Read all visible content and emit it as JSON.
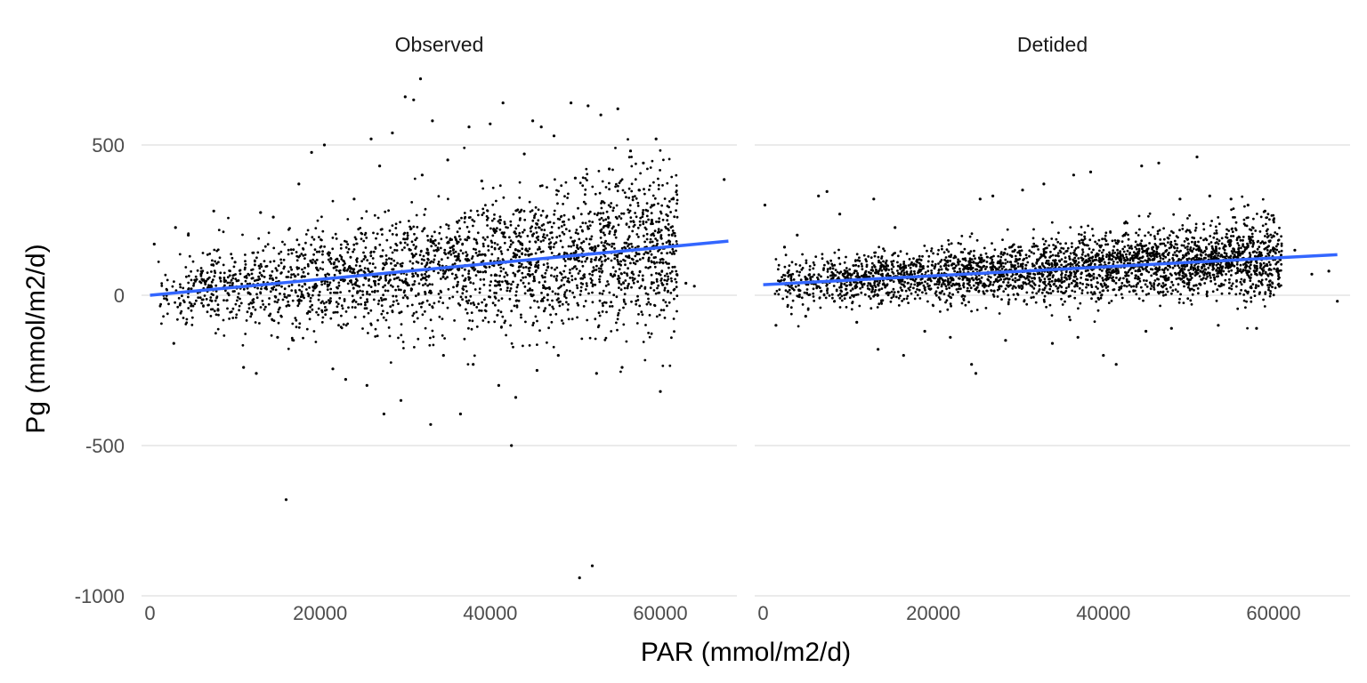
{
  "chart_data": {
    "type": "scatter",
    "xlabel": "PAR (mmol/m2/d)",
    "ylabel": "Pg (mmol/m2/d)",
    "xlim": [
      -1000,
      69000
    ],
    "ylim": [
      -1000,
      710
    ],
    "x_ticks": [
      0,
      20000,
      40000,
      60000
    ],
    "x_tick_labels": [
      "0",
      "20000",
      "40000",
      "60000"
    ],
    "y_ticks": [
      500,
      0,
      -500,
      -1000
    ],
    "y_tick_labels": [
      "500",
      "0",
      "-500",
      "-1000"
    ],
    "grid": true,
    "legend": "none",
    "point_color": "#000000",
    "fit_line_color": "#3366FF",
    "facets": [
      {
        "title": "Observed",
        "fit_line": {
          "x": [
            0,
            68000
          ],
          "y": [
            0,
            180
          ]
        },
        "points": [
          [
            500,
            170
          ],
          [
            2800,
            -160
          ],
          [
            3000,
            225
          ],
          [
            4500,
            200
          ],
          [
            6000,
            70
          ],
          [
            7500,
            280
          ],
          [
            11000,
            -240
          ],
          [
            12500,
            -260
          ],
          [
            13000,
            275
          ],
          [
            14500,
            260
          ],
          [
            16000,
            -680
          ],
          [
            17500,
            370
          ],
          [
            19000,
            475
          ],
          [
            20500,
            500
          ],
          [
            21500,
            -245
          ],
          [
            22000,
            120
          ],
          [
            24000,
            320
          ],
          [
            26000,
            520
          ],
          [
            27500,
            -395
          ],
          [
            28500,
            540
          ],
          [
            30000,
            660
          ],
          [
            31000,
            650
          ],
          [
            31800,
            720
          ],
          [
            33000,
            -430
          ],
          [
            33200,
            580
          ],
          [
            35000,
            450
          ],
          [
            36500,
            -395
          ],
          [
            37500,
            560
          ],
          [
            40000,
            570
          ],
          [
            41500,
            640
          ],
          [
            42500,
            -500
          ],
          [
            44000,
            470
          ],
          [
            45000,
            580
          ],
          [
            46000,
            560
          ],
          [
            47500,
            530
          ],
          [
            49500,
            640
          ],
          [
            50500,
            -940
          ],
          [
            51500,
            630
          ],
          [
            52000,
            -900
          ],
          [
            53000,
            600
          ],
          [
            55000,
            620
          ],
          [
            56500,
            480
          ],
          [
            58000,
            440
          ],
          [
            59500,
            520
          ],
          [
            60000,
            -320
          ],
          [
            61000,
            180
          ],
          [
            63000,
            40
          ],
          [
            64000,
            30
          ],
          [
            67500,
            385
          ],
          [
            8000,
            -50
          ],
          [
            10000,
            110
          ],
          [
            15000,
            -140
          ],
          [
            18500,
            -60
          ],
          [
            23000,
            -280
          ],
          [
            25500,
            -300
          ],
          [
            27000,
            430
          ],
          [
            29500,
            -350
          ],
          [
            32000,
            400
          ],
          [
            34500,
            -200
          ],
          [
            38000,
            -230
          ],
          [
            39000,
            380
          ],
          [
            41000,
            -300
          ],
          [
            43000,
            -340
          ],
          [
            45500,
            -250
          ],
          [
            48000,
            -200
          ],
          [
            50000,
            390
          ],
          [
            52500,
            -260
          ],
          [
            54000,
            420
          ],
          [
            55500,
            -240
          ],
          [
            57500,
            350
          ],
          [
            59000,
            250
          ]
        ],
        "cloud": {
          "x_range": [
            1000,
            62000
          ],
          "y_at_0": 0,
          "slope_per_1000": 2.6,
          "spread_at_0": 70,
          "spread_growth_per_1000": 1.9,
          "count": 2600,
          "seed": 11
        }
      },
      {
        "title": "Detided",
        "fit_line": {
          "x": [
            0,
            67500
          ],
          "y": [
            35,
            135
          ]
        },
        "points": [
          [
            200,
            300
          ],
          [
            1500,
            -100
          ],
          [
            2500,
            160
          ],
          [
            4000,
            200
          ],
          [
            6500,
            330
          ],
          [
            7500,
            345
          ],
          [
            9000,
            270
          ],
          [
            13000,
            320
          ],
          [
            13500,
            -180
          ],
          [
            15500,
            225
          ],
          [
            16500,
            -200
          ],
          [
            24500,
            -230
          ],
          [
            25000,
            -260
          ],
          [
            25500,
            320
          ],
          [
            27000,
            330
          ],
          [
            30500,
            350
          ],
          [
            33000,
            370
          ],
          [
            36500,
            400
          ],
          [
            38500,
            410
          ],
          [
            40000,
            -200
          ],
          [
            41500,
            -230
          ],
          [
            42500,
            240
          ],
          [
            44500,
            430
          ],
          [
            46500,
            440
          ],
          [
            49000,
            320
          ],
          [
            51000,
            460
          ],
          [
            52500,
            330
          ],
          [
            55000,
            320
          ],
          [
            57000,
            300
          ],
          [
            59000,
            280
          ],
          [
            60000,
            250
          ],
          [
            62500,
            150
          ],
          [
            64500,
            70
          ],
          [
            66500,
            80
          ],
          [
            67500,
            -20
          ],
          [
            5000,
            -70
          ],
          [
            11000,
            -90
          ],
          [
            19000,
            -120
          ],
          [
            22000,
            -140
          ],
          [
            28500,
            -150
          ],
          [
            34000,
            -160
          ],
          [
            37000,
            -140
          ],
          [
            45000,
            -120
          ],
          [
            48000,
            -110
          ],
          [
            53500,
            -100
          ],
          [
            58000,
            -110
          ]
        ],
        "cloud": {
          "x_range": [
            1000,
            61000
          ],
          "y_at_0": 35,
          "slope_per_1000": 1.5,
          "spread_at_0": 50,
          "spread_growth_per_1000": 0.6,
          "count": 3000,
          "seed": 29
        }
      }
    ]
  }
}
